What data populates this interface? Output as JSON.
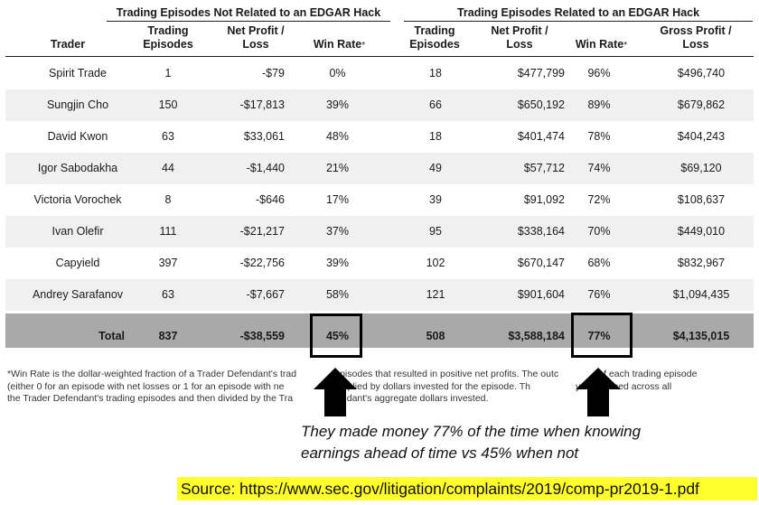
{
  "table": {
    "group_not_related": "Trading Episodes Not Related to an EDGAR Hack",
    "group_related": "Trading Episodes Related to an EDGAR Hack",
    "headers": {
      "trader": "Trader",
      "episodes_1": "Trading\nEpisodes",
      "net_profit_1": "Net Profit /\nLoss",
      "win_rate_1": "Win Rate",
      "episodes_2": "Trading\nEpisodes",
      "net_profit_2": "Net Profit /\nLoss",
      "win_rate_2": "Win Rate",
      "gross_profit": "Gross Profit /\nLoss",
      "asterisk": "*"
    },
    "rows": [
      {
        "trader": "Spirit Trade",
        "ep1": "1",
        "np1": "-$79",
        "wr1": "0%",
        "ep2": "18",
        "np2": "$477,799",
        "wr2": "96%",
        "gp": "$496,740"
      },
      {
        "trader": "Sungjin Cho",
        "ep1": "150",
        "np1": "-$17,813",
        "wr1": "39%",
        "ep2": "66",
        "np2": "$650,192",
        "wr2": "89%",
        "gp": "$679,862"
      },
      {
        "trader": "David Kwon",
        "ep1": "63",
        "np1": "$33,061",
        "wr1": "48%",
        "ep2": "18",
        "np2": "$401,474",
        "wr2": "78%",
        "gp": "$404,243"
      },
      {
        "trader": "Igor Sabodakha",
        "ep1": "44",
        "np1": "-$1,440",
        "wr1": "21%",
        "ep2": "49",
        "np2": "$57,712",
        "wr2": "74%",
        "gp": "$69,120"
      },
      {
        "trader": "Victoria Vorochek",
        "ep1": "8",
        "np1": "-$646",
        "wr1": "17%",
        "ep2": "39",
        "np2": "$91,092",
        "wr2": "72%",
        "gp": "$108,637"
      },
      {
        "trader": "Ivan Olefir",
        "ep1": "111",
        "np1": "-$21,217",
        "wr1": "37%",
        "ep2": "95",
        "np2": "$338,164",
        "wr2": "70%",
        "gp": "$449,010"
      },
      {
        "trader": "Capyield",
        "ep1": "397",
        "np1": "-$22,756",
        "wr1": "39%",
        "ep2": "102",
        "np2": "$670,147",
        "wr2": "68%",
        "gp": "$832,967"
      },
      {
        "trader": "Andrey Sarafanov",
        "ep1": "63",
        "np1": "-$7,667",
        "wr1": "58%",
        "ep2": "121",
        "np2": "$901,604",
        "wr2": "76%",
        "gp": "$1,094,435"
      }
    ],
    "total": {
      "trader": "Total",
      "ep1": "837",
      "np1": "-$38,559",
      "wr1": "45%",
      "ep2": "508",
      "np2": "$3,588,184",
      "wr2": "77%",
      "gp": "$4,135,015"
    }
  },
  "footnote": {
    "line1a": "*Win Rate is the dollar-weighted fraction of a Trader Defendant's trad",
    "line1b": "pisodes that resulted in positive net profits.  The outc",
    "line1c": "f each trading episode",
    "line2a": "(either 0 for an episode with net losses or 1 for an episode with ne",
    "line2b": "multiplied by dollars invested for the episode.  Th",
    "line2c": "y is summed across all",
    "line3a": "the Trader Defendant's trading episodes and then divided by the Tra",
    "line3b": "endant's aggregate dollars invested."
  },
  "annotation": {
    "line1": "They made money 77% of the time when knowing",
    "line2": "earnings ahead of time vs 45% when not"
  },
  "source": "Source: https://www.sec.gov/litigation/complaints/2019/comp-pr2019-1.pdf",
  "colors": {
    "total_row_bg": "#a9a9a9",
    "alt_row_bg": "#f0f0f0",
    "source_highlight": "#ffff2b"
  }
}
